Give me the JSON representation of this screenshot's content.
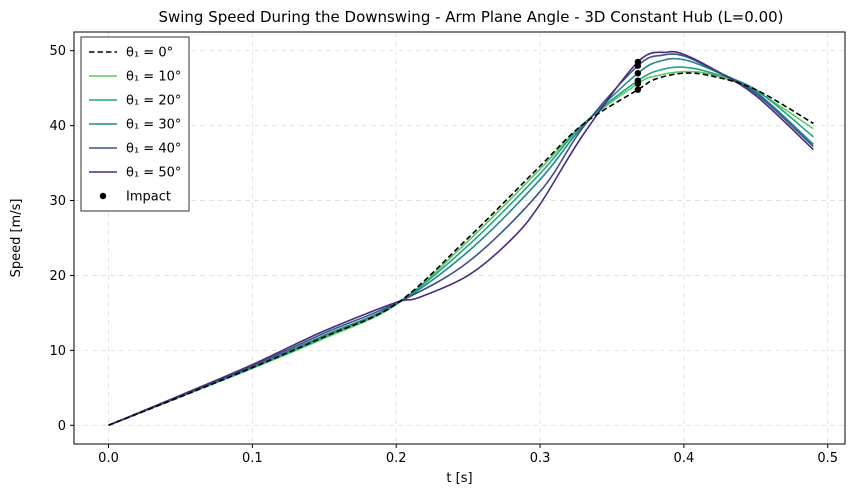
{
  "chart_data": {
    "type": "line",
    "title": "Swing Speed During the Downswing - Arm Plane Angle - 3D Constant Hub (L=0.00)",
    "xlabel": "t [s]",
    "ylabel": "Speed [m/s]",
    "xlim": [
      -0.024,
      0.512
    ],
    "ylim": [
      -2.5,
      52.5
    ],
    "xticks": [
      0.0,
      0.1,
      0.2,
      0.3,
      0.4,
      0.5
    ],
    "xtick_labels": [
      "0.0",
      "0.1",
      "0.2",
      "0.3",
      "0.4",
      "0.5"
    ],
    "yticks": [
      0,
      10,
      20,
      30,
      40,
      50
    ],
    "ytick_labels": [
      "0",
      "10",
      "20",
      "30",
      "40",
      "50"
    ],
    "grid": true,
    "legend_position": "upper-left",
    "series": [
      {
        "name": "θ₁ = 0°",
        "color": "#000000",
        "dash": true,
        "x": [
          0,
          0.05,
          0.1,
          0.15,
          0.2,
          0.25,
          0.3,
          0.33,
          0.368,
          0.38,
          0.4,
          0.42,
          0.45,
          0.49
        ],
        "y": [
          0,
          3.8,
          7.7,
          11.8,
          16.2,
          25.0,
          34.6,
          40.2,
          44.8,
          46.2,
          47.0,
          46.6,
          44.8,
          40.3
        ]
      },
      {
        "name": "θ₁ = 10°",
        "color": "#5ec962",
        "x": [
          0,
          0.05,
          0.1,
          0.15,
          0.2,
          0.25,
          0.3,
          0.33,
          0.368,
          0.38,
          0.4,
          0.42,
          0.45,
          0.49
        ],
        "y": [
          0,
          3.8,
          7.6,
          11.6,
          16.1,
          24.6,
          34.2,
          40.2,
          45.6,
          46.6,
          47.2,
          46.8,
          44.6,
          39.6
        ]
      },
      {
        "name": "θ₁ = 20°",
        "color": "#21a585",
        "x": [
          0,
          0.05,
          0.1,
          0.15,
          0.2,
          0.25,
          0.3,
          0.33,
          0.368,
          0.385,
          0.4,
          0.42,
          0.45,
          0.49
        ],
        "y": [
          0,
          3.8,
          7.7,
          11.8,
          16.2,
          24.0,
          33.6,
          40.2,
          46.0,
          47.5,
          47.8,
          47.0,
          44.8,
          38.5
        ]
      },
      {
        "name": "θ₁ = 30°",
        "color": "#1f8a8a",
        "x": [
          0,
          0.05,
          0.1,
          0.15,
          0.2,
          0.25,
          0.3,
          0.33,
          0.368,
          0.385,
          0.4,
          0.42,
          0.45,
          0.49
        ],
        "y": [
          0,
          3.9,
          7.8,
          12.0,
          16.2,
          23.2,
          32.8,
          40.0,
          47.0,
          48.7,
          48.8,
          47.4,
          44.5,
          37.5
        ]
      },
      {
        "name": "θ₁ = 40°",
        "color": "#3b528b",
        "x": [
          0,
          0.05,
          0.1,
          0.15,
          0.2,
          0.25,
          0.3,
          0.33,
          0.368,
          0.385,
          0.4,
          0.42,
          0.45,
          0.49
        ],
        "y": [
          0,
          3.9,
          7.9,
          12.3,
          16.3,
          21.8,
          31.2,
          39.8,
          48.0,
          49.4,
          49.3,
          47.5,
          44.3,
          37.2
        ]
      },
      {
        "name": "θ₁ = 50°",
        "color": "#472d7b",
        "x": [
          0,
          0.05,
          0.1,
          0.15,
          0.2,
          0.215,
          0.25,
          0.28,
          0.3,
          0.33,
          0.368,
          0.388,
          0.4,
          0.42,
          0.45,
          0.49
        ],
        "y": [
          0,
          4.0,
          8.1,
          12.6,
          16.4,
          17.0,
          20.0,
          24.8,
          29.5,
          38.8,
          48.5,
          49.8,
          49.5,
          47.6,
          44.0,
          36.8
        ]
      }
    ],
    "impact": {
      "name": "Impact",
      "color": "#000000",
      "points": [
        {
          "x": 0.368,
          "y": 44.8
        },
        {
          "x": 0.368,
          "y": 45.6
        },
        {
          "x": 0.368,
          "y": 46.0
        },
        {
          "x": 0.368,
          "y": 47.0
        },
        {
          "x": 0.368,
          "y": 48.0
        },
        {
          "x": 0.368,
          "y": 48.5
        }
      ]
    }
  }
}
